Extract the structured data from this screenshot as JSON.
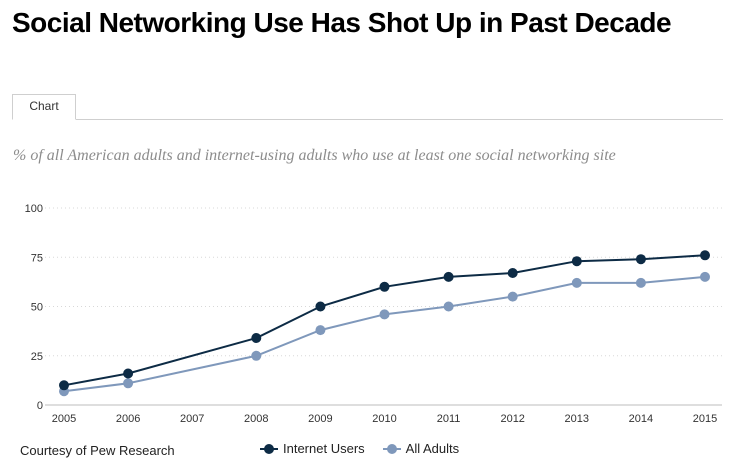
{
  "header": {
    "title": "Social Networking Use Has Shot Up in Past Decade",
    "tab_label": "Chart",
    "subtitle": "% of all American adults and internet-using adults who use at least one social networking site"
  },
  "footer": {
    "credit": "Courtesy of Pew Research"
  },
  "colors": {
    "internet_users": "#0d2b45",
    "all_adults": "#7f98bb",
    "gridline": "#d8d8d8",
    "axis_text": "#333333"
  },
  "chart_data": {
    "type": "line",
    "title": "Social Networking Use Has Shot Up in Past Decade",
    "subtitle": "% of all American adults and internet-using adults who use at least one social networking site",
    "xlabel": "",
    "ylabel": "",
    "ylim": [
      0,
      100
    ],
    "y_ticks": [
      0,
      25,
      50,
      75,
      100
    ],
    "x_ticks": [
      "2005",
      "2006",
      "2007",
      "2008",
      "2009",
      "2010",
      "2011",
      "2012",
      "2013",
      "2014",
      "2015"
    ],
    "grid": "horizontal-dotted",
    "legend_position": "bottom",
    "series": [
      {
        "name": "Internet Users",
        "color": "#0d2b45",
        "points": [
          {
            "x": 2005,
            "y": 10
          },
          {
            "x": 2006,
            "y": 16
          },
          {
            "x": 2008,
            "y": 34
          },
          {
            "x": 2009,
            "y": 50
          },
          {
            "x": 2010,
            "y": 60
          },
          {
            "x": 2011,
            "y": 65
          },
          {
            "x": 2012,
            "y": 67
          },
          {
            "x": 2013,
            "y": 73
          },
          {
            "x": 2014,
            "y": 74
          },
          {
            "x": 2015,
            "y": 76
          }
        ]
      },
      {
        "name": "All Adults",
        "color": "#7f98bb",
        "points": [
          {
            "x": 2005,
            "y": 7
          },
          {
            "x": 2006,
            "y": 11
          },
          {
            "x": 2008,
            "y": 25
          },
          {
            "x": 2009,
            "y": 38
          },
          {
            "x": 2010,
            "y": 46
          },
          {
            "x": 2011,
            "y": 50
          },
          {
            "x": 2012,
            "y": 55
          },
          {
            "x": 2013,
            "y": 62
          },
          {
            "x": 2014,
            "y": 62
          },
          {
            "x": 2015,
            "y": 65
          }
        ]
      }
    ]
  }
}
